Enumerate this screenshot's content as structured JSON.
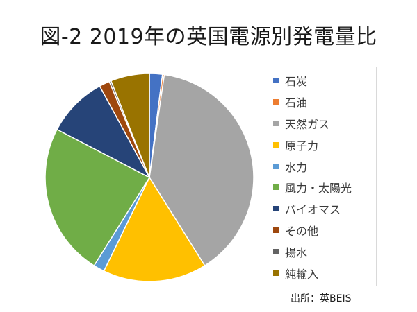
{
  "title": "図-2 2019年の英国電源別発電量比",
  "source_note": "出所：英BEIS",
  "chart_data": {
    "type": "pie",
    "start_angle_deg": 0,
    "direction": "clockwise",
    "legend_position": "right",
    "slices": [
      {
        "label": "石炭",
        "value": 2.1,
        "color": "#4472C4"
      },
      {
        "label": "石油",
        "value": 0.3,
        "color": "#ED7D31"
      },
      {
        "label": "天然ガス",
        "value": 40.7,
        "color": "#A5A5A5"
      },
      {
        "label": "原子力",
        "value": 16.9,
        "color": "#FFC000"
      },
      {
        "label": "水力",
        "value": 1.8,
        "color": "#5B9BD5"
      },
      {
        "label": "風力・太陽光",
        "value": 24.9,
        "color": "#70AD47"
      },
      {
        "label": "バイオマス",
        "value": 9.9,
        "color": "#264478"
      },
      {
        "label": "その他",
        "value": 1.7,
        "color": "#9E480E"
      },
      {
        "label": "揚水",
        "value": 0.3,
        "color": "#636363"
      },
      {
        "label": "純輸入",
        "value": 6.3,
        "color": "#997300"
      }
    ]
  }
}
